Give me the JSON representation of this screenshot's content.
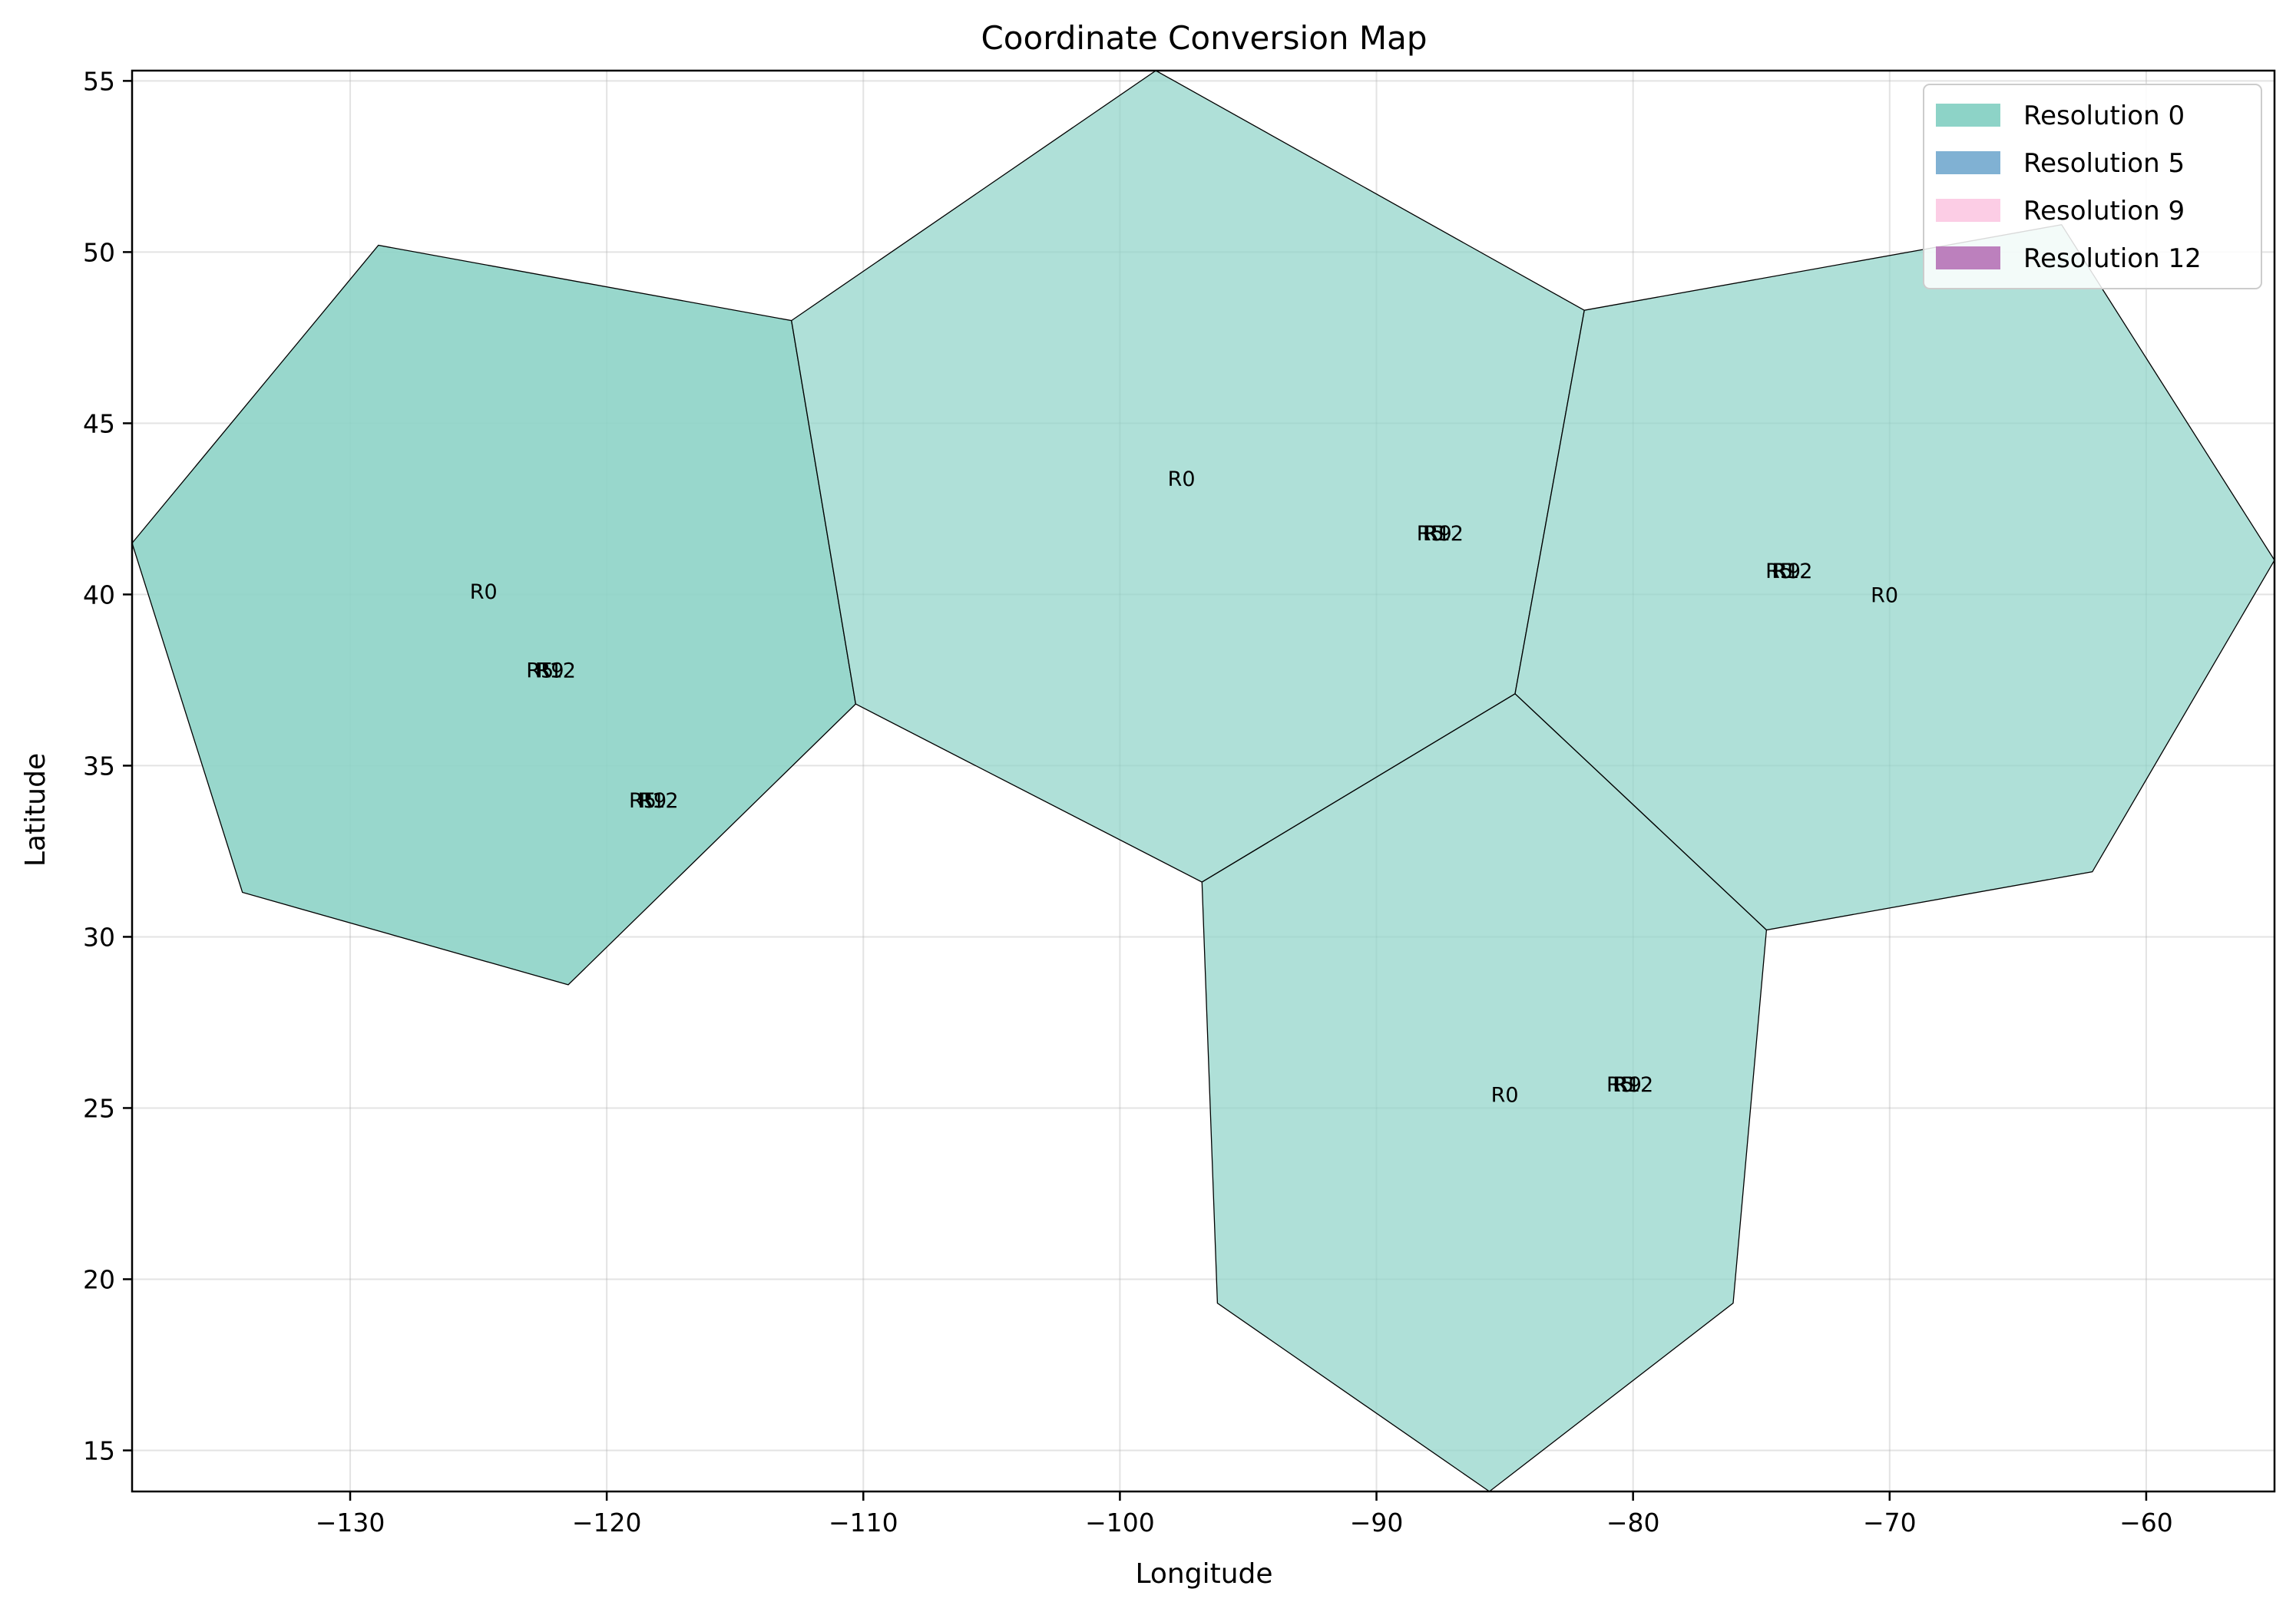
{
  "chart_data": {
    "type": "area",
    "title": "Coordinate Conversion Map",
    "xlabel": "Longitude",
    "ylabel": "Latitude",
    "xlim": [
      -138.5,
      -55
    ],
    "ylim": [
      13.8,
      55.3
    ],
    "xticks": [
      -130,
      -120,
      -110,
      -100,
      -90,
      -80,
      -70,
      -60
    ],
    "yticks": [
      15,
      20,
      25,
      30,
      35,
      40,
      45,
      50,
      55
    ],
    "xtick_labels": [
      "−130",
      "−120",
      "−110",
      "−100",
      "−90",
      "−80",
      "−70",
      "−60"
    ],
    "ytick_labels": [
      "15",
      "20",
      "25",
      "30",
      "35",
      "40",
      "45",
      "50",
      "55"
    ],
    "grid": true,
    "legend_position": "top-right",
    "legend": [
      {
        "label": "Resolution 0",
        "color": "#8dd3c7"
      },
      {
        "label": "Resolution 5",
        "color": "#80b1d3"
      },
      {
        "label": "Resolution 9",
        "color": "#fccde5"
      },
      {
        "label": "Resolution 12",
        "color": "#bc80bd"
      }
    ],
    "cells": [
      {
        "resolution": "Resolution 0",
        "color": "#8dd3c7",
        "opacity": 0.9,
        "polygon": [
          [
            -138.5,
            41.5
          ],
          [
            -128.9,
            50.2
          ],
          [
            -112.8,
            48.0
          ],
          [
            -110.3,
            36.8
          ],
          [
            -121.5,
            28.6
          ],
          [
            -134.2,
            31.3
          ]
        ]
      },
      {
        "resolution": "Resolution 0",
        "color": "#8dd3c7",
        "opacity": 0.7,
        "polygon": [
          [
            -112.8,
            48.0
          ],
          [
            -98.6,
            55.3
          ],
          [
            -81.9,
            48.3
          ],
          [
            -84.6,
            37.1
          ],
          [
            -96.8,
            31.6
          ],
          [
            -110.3,
            36.8
          ]
        ]
      },
      {
        "resolution": "Resolution 0",
        "color": "#8dd3c7",
        "opacity": 0.7,
        "polygon": [
          [
            -81.9,
            48.3
          ],
          [
            -63.3,
            50.8
          ],
          [
            -55.0,
            41.0
          ],
          [
            -62.1,
            31.9
          ],
          [
            -74.8,
            30.2
          ],
          [
            -84.6,
            37.1
          ]
        ]
      },
      {
        "resolution": "Resolution 0",
        "color": "#8dd3c7",
        "opacity": 0.7,
        "polygon": [
          [
            -96.8,
            31.6
          ],
          [
            -84.6,
            37.1
          ],
          [
            -74.8,
            30.2
          ],
          [
            -76.1,
            19.3
          ],
          [
            -85.6,
            13.8
          ],
          [
            -96.2,
            19.3
          ]
        ]
      }
    ],
    "annotations": [
      {
        "text": "R0",
        "x": -124.8,
        "y": 40.1
      },
      {
        "text": "R0",
        "x": -97.6,
        "y": 43.4
      },
      {
        "text": "R0",
        "x": -70.2,
        "y": 40.0
      },
      {
        "text": "R0",
        "x": -85.0,
        "y": 25.4
      },
      {
        "text": "R5",
        "x": -122.6,
        "y": 37.8
      },
      {
        "text": "R9",
        "x": -122.2,
        "y": 37.8
      },
      {
        "text": "R12",
        "x": -122.0,
        "y": 37.8
      },
      {
        "text": "R5",
        "x": -118.6,
        "y": 34.0
      },
      {
        "text": "R9",
        "x": -118.2,
        "y": 34.0
      },
      {
        "text": "R12",
        "x": -118.0,
        "y": 34.0
      },
      {
        "text": "R5",
        "x": -87.9,
        "y": 41.8
      },
      {
        "text": "R9",
        "x": -87.6,
        "y": 41.8
      },
      {
        "text": "R12",
        "x": -87.4,
        "y": 41.8
      },
      {
        "text": "R5",
        "x": -74.3,
        "y": 40.7
      },
      {
        "text": "R9",
        "x": -74.0,
        "y": 40.7
      },
      {
        "text": "R12",
        "x": -73.8,
        "y": 40.7
      },
      {
        "text": "R5",
        "x": -80.5,
        "y": 25.7
      },
      {
        "text": "R9",
        "x": -80.2,
        "y": 25.7
      },
      {
        "text": "R12",
        "x": -80.0,
        "y": 25.7
      }
    ]
  }
}
